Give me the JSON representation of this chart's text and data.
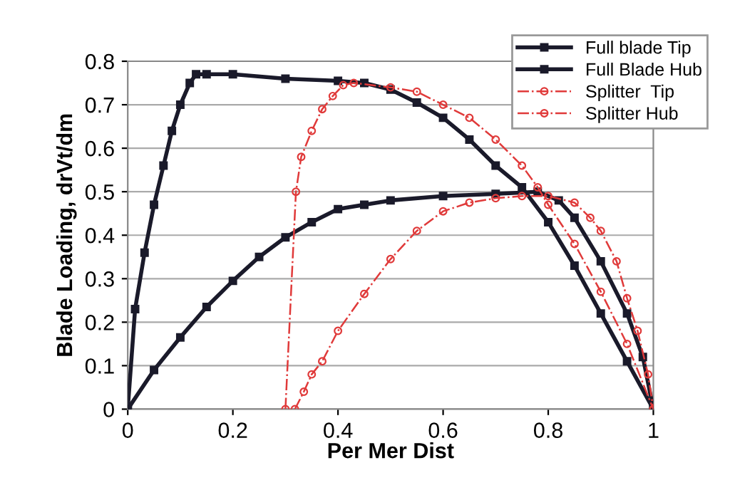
{
  "chart_data": {
    "type": "line",
    "xlabel": "Per Mer Dist",
    "ylabel": "Blade Loading, drVt/dm",
    "xlim": [
      0,
      1
    ],
    "ylim": [
      0,
      0.8
    ],
    "xticks": [
      0,
      0.2,
      0.4,
      0.6,
      0.8,
      1
    ],
    "yticks": [
      0,
      0.1,
      0.2,
      0.3,
      0.4,
      0.5,
      0.6,
      0.7,
      0.8
    ],
    "grid": "y",
    "legend": "top right",
    "series": [
      {
        "name": "Full blade Tip",
        "color": "#1a1a2a",
        "marker": "square",
        "line_style": "solid",
        "x": [
          0,
          0.014,
          0.032,
          0.05,
          0.068,
          0.084,
          0.1,
          0.118,
          0.13,
          0.15,
          0.2,
          0.3,
          0.4,
          0.45,
          0.5,
          0.55,
          0.6,
          0.65,
          0.7,
          0.75,
          0.8,
          0.85,
          0.9,
          0.95,
          1
        ],
        "values": [
          0,
          0.23,
          0.36,
          0.47,
          0.56,
          0.64,
          0.7,
          0.75,
          0.77,
          0.77,
          0.77,
          0.76,
          0.755,
          0.75,
          0.735,
          0.705,
          0.67,
          0.62,
          0.56,
          0.51,
          0.43,
          0.33,
          0.22,
          0.11,
          0
        ]
      },
      {
        "name": "Full Blade Hub",
        "color": "#1a1a2a",
        "marker": "square",
        "line_style": "solid",
        "x": [
          0,
          0.05,
          0.1,
          0.15,
          0.2,
          0.25,
          0.3,
          0.35,
          0.4,
          0.45,
          0.5,
          0.6,
          0.7,
          0.78,
          0.82,
          0.85,
          0.9,
          0.95,
          0.98,
          1
        ],
        "values": [
          0,
          0.09,
          0.165,
          0.235,
          0.295,
          0.35,
          0.395,
          0.43,
          0.46,
          0.47,
          0.48,
          0.49,
          0.495,
          0.5,
          0.48,
          0.44,
          0.34,
          0.22,
          0.12,
          0
        ]
      },
      {
        "name": "Splitter  Tip",
        "color": "#e03a3a",
        "marker": "circle",
        "line_style": "dashdot",
        "x": [
          0.3,
          0.32,
          0.33,
          0.35,
          0.37,
          0.39,
          0.41,
          0.43,
          0.5,
          0.55,
          0.6,
          0.65,
          0.7,
          0.75,
          0.78,
          0.8,
          0.85,
          0.9,
          0.95,
          1
        ],
        "values": [
          0,
          0.5,
          0.58,
          0.64,
          0.69,
          0.72,
          0.745,
          0.75,
          0.74,
          0.73,
          0.7,
          0.67,
          0.62,
          0.56,
          0.51,
          0.47,
          0.38,
          0.27,
          0.15,
          0
        ]
      },
      {
        "name": "Splitter Hub",
        "color": "#e03a3a",
        "marker": "circle",
        "line_style": "dashdot",
        "x": [
          0.318,
          0.335,
          0.35,
          0.37,
          0.4,
          0.45,
          0.5,
          0.55,
          0.6,
          0.65,
          0.7,
          0.75,
          0.8,
          0.85,
          0.88,
          0.9,
          0.93,
          0.95,
          0.97,
          0.99,
          1
        ],
        "values": [
          0,
          0.04,
          0.08,
          0.11,
          0.18,
          0.265,
          0.345,
          0.41,
          0.455,
          0.475,
          0.485,
          0.49,
          0.49,
          0.475,
          0.44,
          0.41,
          0.34,
          0.255,
          0.18,
          0.08,
          0
        ]
      }
    ]
  }
}
